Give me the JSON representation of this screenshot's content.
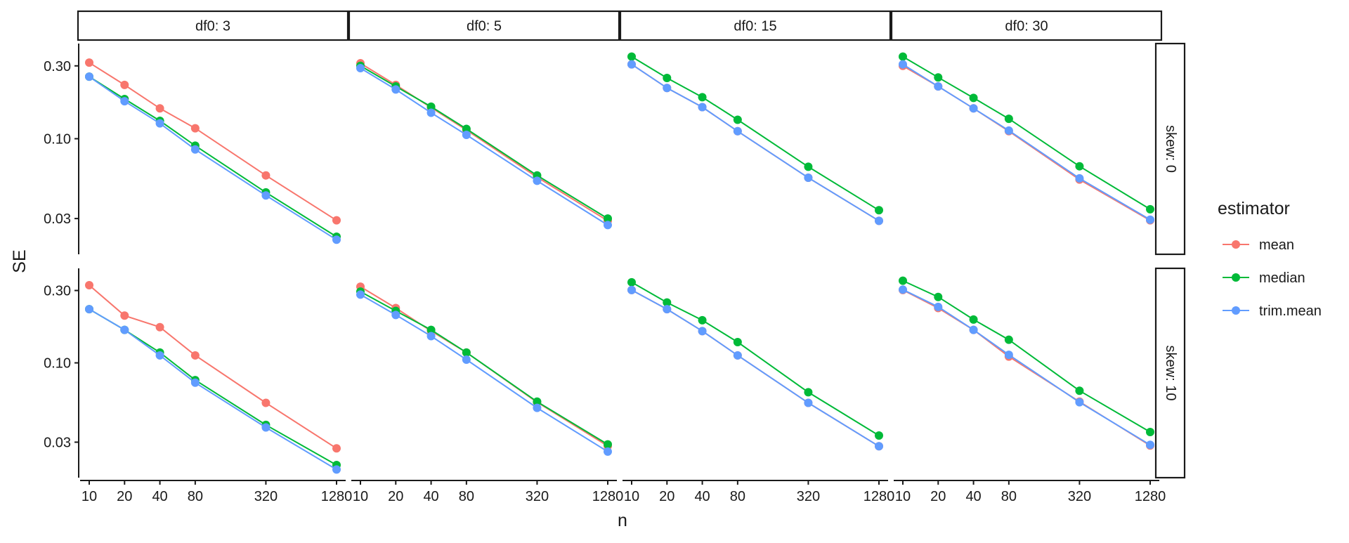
{
  "chart_data": {
    "type": "line",
    "facet_type": "grid",
    "xlabel": "n",
    "ylabel": "SE",
    "x_scale": "log",
    "y_scale": "log",
    "x": [
      10,
      20,
      40,
      80,
      320,
      1280
    ],
    "x_ticks": [
      "10",
      "20",
      "40",
      "80",
      "320",
      "1280"
    ],
    "y_ticks": [
      {
        "label": "0.03",
        "value": 0.03
      },
      {
        "label": "0.10",
        "value": 0.1
      },
      {
        "label": "0.30",
        "value": 0.3
      }
    ],
    "ylim": [
      0.0175,
      0.42
    ],
    "legend": {
      "title": "estimator",
      "position": "right",
      "entries": [
        {
          "name": "mean",
          "color": "#F8766D"
        },
        {
          "name": "median",
          "color": "#00BA38"
        },
        {
          "name": "trim.mean",
          "color": "#619CFF"
        }
      ]
    },
    "col_strips": [
      "df0: 3",
      "df0: 5",
      "df0: 15",
      "df0: 30"
    ],
    "row_strips": [
      "skew: 0",
      "skew: 10"
    ],
    "grid": false,
    "panels": [
      {
        "row": 0,
        "col": 0,
        "series": {
          "mean": [
            0.315,
            0.225,
            0.158,
            0.117,
            0.0575,
            0.0292
          ],
          "median": [
            0.255,
            0.182,
            0.131,
            0.09,
            0.0445,
            0.0228
          ],
          "trim.mean": [
            0.255,
            0.176,
            0.126,
            0.085,
            0.0425,
            0.0218
          ]
        }
      },
      {
        "row": 0,
        "col": 1,
        "series": {
          "mean": [
            0.312,
            0.225,
            0.16,
            0.114,
            0.056,
            0.029
          ],
          "median": [
            0.3,
            0.22,
            0.162,
            0.116,
            0.0575,
            0.03
          ],
          "trim.mean": [
            0.29,
            0.21,
            0.148,
            0.106,
            0.053,
            0.0272
          ]
        }
      },
      {
        "row": 0,
        "col": 2,
        "series": {
          "mean": [
            0.307,
            0.215,
            0.161,
            0.112,
            0.0555,
            0.029
          ],
          "median": [
            0.345,
            0.25,
            0.187,
            0.133,
            0.0655,
            0.034
          ],
          "trim.mean": [
            0.307,
            0.215,
            0.161,
            0.112,
            0.0555,
            0.029
          ]
        }
      },
      {
        "row": 0,
        "col": 3,
        "series": {
          "mean": [
            0.3,
            0.22,
            0.158,
            0.112,
            0.054,
            0.0292
          ],
          "median": [
            0.345,
            0.252,
            0.185,
            0.135,
            0.066,
            0.0345
          ],
          "trim.mean": [
            0.307,
            0.22,
            0.158,
            0.113,
            0.055,
            0.0295
          ]
        }
      },
      {
        "row": 1,
        "col": 0,
        "series": {
          "mean": [
            0.325,
            0.205,
            0.172,
            0.112,
            0.0545,
            0.0273
          ],
          "median": [
            0.226,
            0.165,
            0.117,
            0.077,
            0.039,
            0.0212
          ],
          "trim.mean": [
            0.226,
            0.165,
            0.112,
            0.074,
            0.0375,
            0.0198
          ]
        }
      },
      {
        "row": 1,
        "col": 1,
        "series": {
          "mean": [
            0.318,
            0.23,
            0.162,
            0.117,
            0.055,
            0.0283
          ],
          "median": [
            0.295,
            0.22,
            0.165,
            0.117,
            0.0555,
            0.029
          ],
          "trim.mean": [
            0.282,
            0.207,
            0.15,
            0.105,
            0.0505,
            0.026
          ]
        }
      },
      {
        "row": 1,
        "col": 2,
        "series": {
          "mean": [
            0.302,
            0.226,
            0.162,
            0.112,
            0.0545,
            0.0282
          ],
          "median": [
            0.34,
            0.25,
            0.191,
            0.137,
            0.064,
            0.0332
          ],
          "trim.mean": [
            0.302,
            0.226,
            0.162,
            0.112,
            0.0545,
            0.0282
          ]
        }
      },
      {
        "row": 1,
        "col": 3,
        "series": {
          "mean": [
            0.302,
            0.23,
            0.165,
            0.11,
            0.0555,
            0.0285
          ],
          "median": [
            0.348,
            0.272,
            0.193,
            0.142,
            0.0655,
            0.035
          ],
          "trim.mean": [
            0.304,
            0.234,
            0.165,
            0.113,
            0.055,
            0.0288
          ]
        }
      }
    ]
  }
}
